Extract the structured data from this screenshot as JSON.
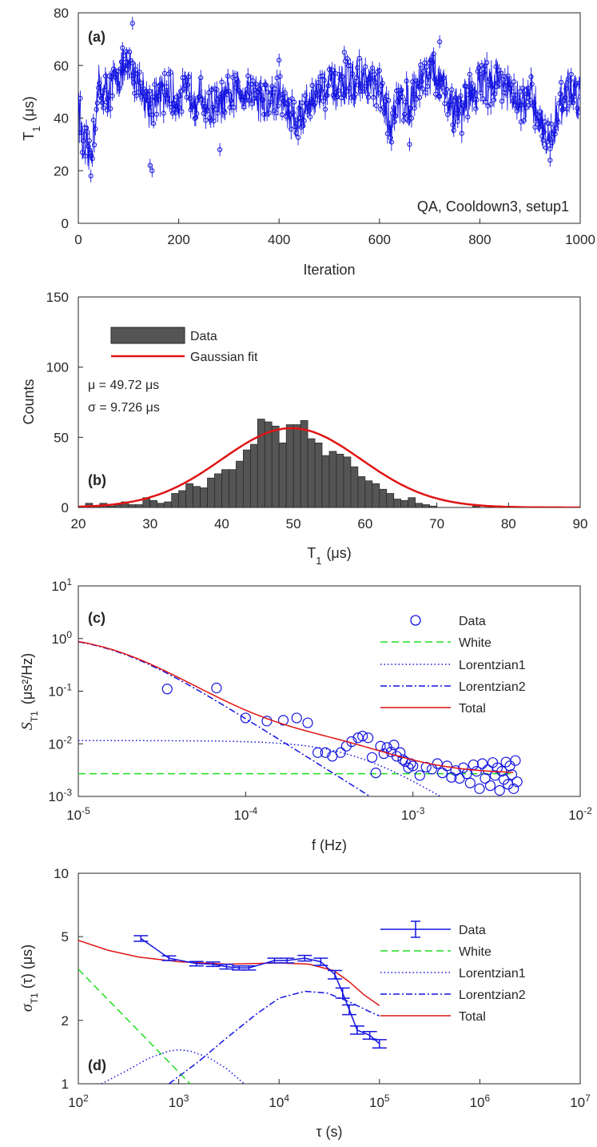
{
  "chart_data": [
    {
      "id": "a",
      "type": "scatter",
      "panel_label": "(a)",
      "annotation": "QA, Cooldown3, setup1",
      "xlabel": "Iteration",
      "ylabel": "T",
      "ylabel_sub": "1",
      "ylabel_unit": "(μs)",
      "xlim": [
        0,
        1000
      ],
      "ylim": [
        0,
        80
      ],
      "xticks": [
        "0",
        "200",
        "400",
        "600",
        "800",
        "1000"
      ],
      "yticks": [
        "0",
        "20",
        "40",
        "60",
        "80"
      ],
      "color": "#1414e0",
      "segments": [
        [
          0,
          48
        ],
        [
          10,
          28
        ],
        [
          25,
          25
        ],
        [
          40,
          52
        ],
        [
          60,
          50
        ],
        [
          80,
          56
        ],
        [
          100,
          59
        ],
        [
          120,
          55
        ],
        [
          140,
          45
        ],
        [
          160,
          47
        ],
        [
          180,
          50
        ],
        [
          200,
          46
        ],
        [
          220,
          51
        ],
        [
          240,
          48
        ],
        [
          260,
          45
        ],
        [
          280,
          44
        ],
        [
          300,
          48
        ],
        [
          320,
          50
        ],
        [
          340,
          52
        ],
        [
          360,
          47
        ],
        [
          380,
          45
        ],
        [
          400,
          49
        ],
        [
          420,
          42
        ],
        [
          440,
          40
        ],
        [
          460,
          47
        ],
        [
          480,
          50
        ],
        [
          500,
          52
        ],
        [
          520,
          51
        ],
        [
          540,
          54
        ],
        [
          560,
          55
        ],
        [
          580,
          53
        ],
        [
          600,
          50
        ],
        [
          620,
          38
        ],
        [
          640,
          46
        ],
        [
          660,
          47
        ],
        [
          680,
          55
        ],
        [
          700,
          58
        ],
        [
          720,
          54
        ],
        [
          740,
          46
        ],
        [
          760,
          42
        ],
        [
          780,
          48
        ],
        [
          800,
          53
        ],
        [
          820,
          54
        ],
        [
          840,
          56
        ],
        [
          860,
          48
        ],
        [
          880,
          45
        ],
        [
          900,
          47
        ],
        [
          920,
          40
        ],
        [
          940,
          30
        ],
        [
          960,
          46
        ],
        [
          980,
          50
        ],
        [
          1000,
          49
        ]
      ],
      "outliers": [
        [
          108,
          76
        ],
        [
          143,
          22
        ],
        [
          147,
          20
        ],
        [
          25,
          18
        ],
        [
          58,
          43
        ],
        [
          400,
          62
        ],
        [
          720,
          69
        ],
        [
          940,
          24
        ],
        [
          282,
          28
        ],
        [
          530,
          65
        ],
        [
          660,
          30
        ]
      ]
    },
    {
      "id": "b",
      "type": "bar",
      "panel_label": "(b)",
      "xlabel": "T",
      "xlabel_sub": "1",
      "xlabel_unit": "(μs)",
      "ylabel": "Counts",
      "xlim": [
        20,
        90
      ],
      "ylim": [
        0,
        150
      ],
      "xticks": [
        "20",
        "30",
        "40",
        "50",
        "60",
        "70",
        "80",
        "90"
      ],
      "yticks": [
        "0",
        "50",
        "100",
        "150"
      ],
      "bin_start": 20,
      "bin_width": 1,
      "values": [
        0,
        3,
        1,
        3,
        1,
        2,
        4,
        2,
        2,
        7,
        5,
        3,
        4,
        10,
        12,
        17,
        15,
        14,
        21,
        24,
        27,
        27,
        33,
        41,
        45,
        63,
        61,
        58,
        46,
        59,
        59,
        62,
        49,
        46,
        37,
        40,
        38,
        36,
        29,
        22,
        19,
        17,
        13,
        10,
        6,
        5,
        7,
        3,
        2,
        1,
        0,
        0,
        0,
        0,
        0,
        1,
        0,
        0,
        0,
        0,
        0,
        0,
        0,
        0,
        0,
        0,
        0,
        0,
        0,
        0
      ],
      "fit": {
        "mu": 49.72,
        "sigma": 9.726,
        "peak": 56.5
      },
      "legend": [
        "Data",
        "Gaussian fit"
      ],
      "mu_text": "μ = 49.72 μs",
      "sigma_text": "σ = 9.726 μs",
      "bar_color": "#555555",
      "fit_color": "#e01414"
    },
    {
      "id": "c",
      "type": "scatter",
      "panel_label": "(c)",
      "xlabel": "f (Hz)",
      "ylabel": "S",
      "ylabel_sub": "T1",
      "ylabel_unit": "(μs²/Hz)",
      "xscale": "log",
      "yscale": "log",
      "xlim": [
        1e-05,
        0.01
      ],
      "ylim": [
        0.001,
        10
      ],
      "xticks_exp": [
        "-5",
        "-4",
        "-3",
        "-2"
      ],
      "yticks_exp": [
        "-3",
        "-2",
        "-1",
        "0",
        "1"
      ],
      "tick_base": "10",
      "legend": [
        "Data",
        "White",
        "Lorentzian1",
        "Lorentzian2",
        "Total"
      ],
      "model": {
        "white": 0.0027,
        "lor1_amp": 0.0115,
        "lor1_fc": 0.00045,
        "lor2_amp": 1.2,
        "lor2_fc": 1.6e-05
      },
      "data_points": [
        [
          3.4e-05,
          0.11
        ],
        [
          6.7e-05,
          0.115
        ],
        [
          0.0001,
          0.031
        ],
        [
          0.000134,
          0.027
        ],
        [
          0.000168,
          0.028
        ],
        [
          0.000202,
          0.031
        ],
        [
          0.000235,
          0.025
        ],
        [
          0.00027,
          0.0068
        ],
        [
          0.0003,
          0.0068
        ],
        [
          0.00033,
          0.0058
        ],
        [
          0.00037,
          0.0068
        ],
        [
          0.0004,
          0.009
        ],
        [
          0.00043,
          0.011
        ],
        [
          0.00047,
          0.013
        ],
        [
          0.0005,
          0.014
        ],
        [
          0.00054,
          0.013
        ],
        [
          0.00057,
          0.0055
        ],
        [
          0.0006,
          0.0028
        ],
        [
          0.00064,
          0.009
        ],
        [
          0.00067,
          0.0065
        ],
        [
          0.0007,
          0.0085
        ],
        [
          0.00074,
          0.007
        ],
        [
          0.00077,
          0.0095
        ],
        [
          0.0008,
          0.0058
        ],
        [
          0.00084,
          0.0068
        ],
        [
          0.00087,
          0.005
        ],
        [
          0.0009,
          0.0046
        ],
        [
          0.00094,
          0.0035
        ],
        [
          0.00097,
          0.0042
        ],
        [
          0.001,
          0.0038
        ],
        [
          0.0011,
          0.0025
        ],
        [
          0.0012,
          0.0036
        ],
        [
          0.0013,
          0.0033
        ],
        [
          0.0014,
          0.0042
        ],
        [
          0.0015,
          0.0028
        ],
        [
          0.0016,
          0.0038
        ],
        [
          0.0017,
          0.0023
        ],
        [
          0.0018,
          0.0031
        ],
        [
          0.0019,
          0.0022
        ],
        [
          0.002,
          0.0035
        ],
        [
          0.0021,
          0.0027
        ],
        [
          0.0022,
          0.0018
        ],
        [
          0.0023,
          0.004
        ],
        [
          0.0024,
          0.003
        ],
        [
          0.0025,
          0.0014
        ],
        [
          0.0026,
          0.0042
        ],
        [
          0.0027,
          0.0022
        ],
        [
          0.0028,
          0.0032
        ],
        [
          0.0029,
          0.0016
        ],
        [
          0.003,
          0.0044
        ],
        [
          0.0031,
          0.0025
        ],
        [
          0.0032,
          0.0035
        ],
        [
          0.0033,
          0.0013
        ],
        [
          0.0034,
          0.003
        ],
        [
          0.0035,
          0.0021
        ],
        [
          0.0036,
          0.0045
        ],
        [
          0.0037,
          0.0017
        ],
        [
          0.0038,
          0.0038
        ],
        [
          0.0039,
          0.0026
        ],
        [
          0.004,
          0.0014
        ],
        [
          0.0041,
          0.0048
        ],
        [
          0.0042,
          0.0019
        ]
      ]
    },
    {
      "id": "d",
      "type": "line",
      "panel_label": "(d)",
      "xlabel": "τ (s)",
      "ylabel": "σ",
      "ylabel_sub": "T1",
      "ylabel_unit": "(τ) (μs)",
      "xscale": "log",
      "yscale": "log",
      "xlim": [
        100,
        10000000
      ],
      "ylim": [
        1,
        10
      ],
      "xticks_exp": [
        "2",
        "3",
        "4",
        "5",
        "6",
        "7"
      ],
      "tick_base": "10",
      "yticks": [
        "1",
        "2",
        "5",
        "10"
      ],
      "legend": [
        "Data",
        "White",
        "Lorentzian1",
        "Lorentzian2",
        "Total"
      ],
      "data_points": [
        [
          420,
          4.9,
          0.15
        ],
        [
          800,
          3.95,
          0.1
        ],
        [
          1500,
          3.72,
          0.09
        ],
        [
          2200,
          3.7,
          0.09
        ],
        [
          3000,
          3.6,
          0.09
        ],
        [
          4000,
          3.55,
          0.08
        ],
        [
          5000,
          3.55,
          0.08
        ],
        [
          9000,
          3.85,
          0.1
        ],
        [
          12000,
          3.85,
          0.1
        ],
        [
          18000,
          3.95,
          0.12
        ],
        [
          26000,
          3.8,
          0.15
        ],
        [
          36000,
          3.3,
          0.15
        ],
        [
          43000,
          2.7,
          0.15
        ],
        [
          50000,
          2.25,
          0.12
        ],
        [
          60000,
          1.8,
          0.08
        ],
        [
          80000,
          1.7,
          0.07
        ],
        [
          100000,
          1.55,
          0.07
        ]
      ],
      "model": {
        "white": [
          [
            100,
            3.5
          ],
          [
            1300,
            1.0
          ]
        ],
        "lor1": [
          [
            170,
            1.0
          ],
          [
            300,
            1.15
          ],
          [
            500,
            1.32
          ],
          [
            800,
            1.43
          ],
          [
            1000,
            1.45
          ],
          [
            1300,
            1.43
          ],
          [
            2000,
            1.33
          ],
          [
            3000,
            1.18
          ],
          [
            4500,
            1.0
          ]
        ],
        "lor2": [
          [
            800,
            1.0
          ],
          [
            1500,
            1.25
          ],
          [
            3000,
            1.65
          ],
          [
            6000,
            2.15
          ],
          [
            10000,
            2.55
          ],
          [
            18000,
            2.75
          ],
          [
            30000,
            2.7
          ],
          [
            50000,
            2.45
          ],
          [
            80000,
            2.2
          ],
          [
            100000,
            2.1
          ]
        ],
        "total": [
          [
            100,
            4.8
          ],
          [
            200,
            4.3
          ],
          [
            400,
            4.0
          ],
          [
            1000,
            3.8
          ],
          [
            3000,
            3.7
          ],
          [
            10000,
            3.75
          ],
          [
            20000,
            3.7
          ],
          [
            35000,
            3.45
          ],
          [
            50000,
            3.05
          ],
          [
            70000,
            2.65
          ],
          [
            100000,
            2.35
          ]
        ]
      }
    }
  ]
}
